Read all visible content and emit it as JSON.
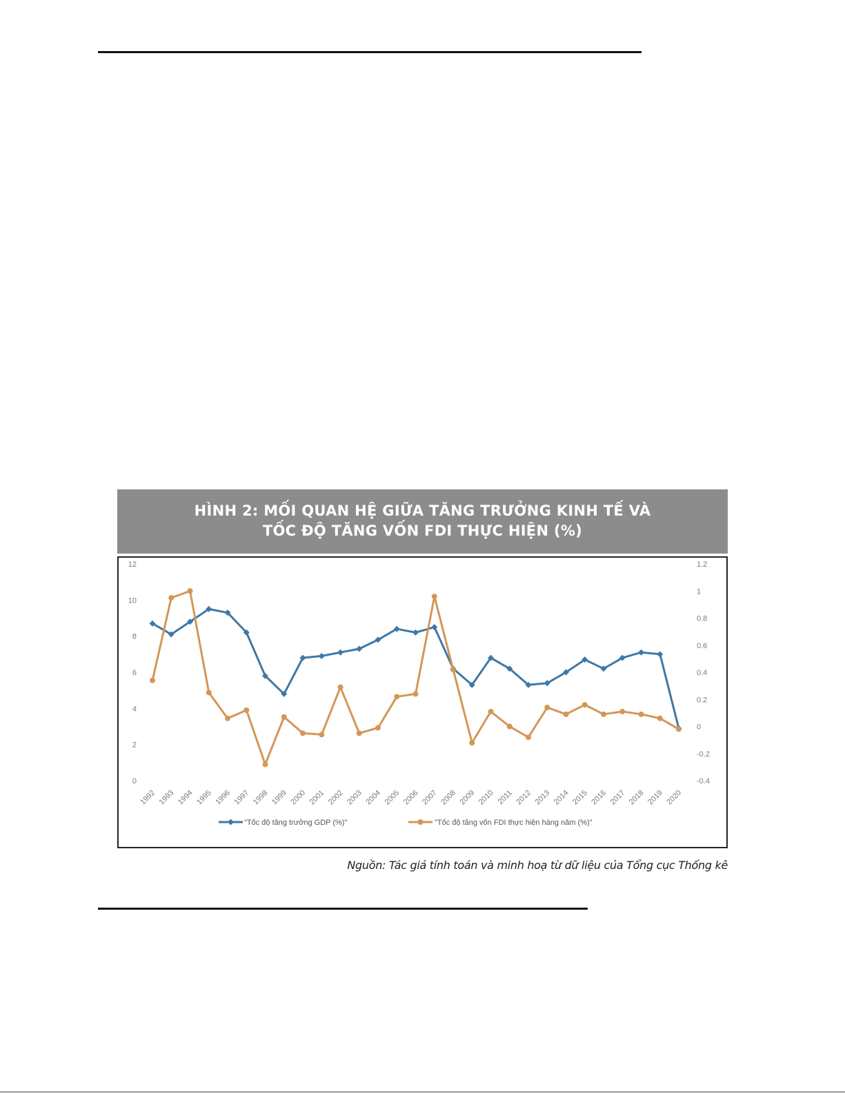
{
  "figure": {
    "title_line1": "HÌNH 2: MỐI QUAN HỆ GIỮA TĂNG TRƯỞNG KINH TẾ VÀ",
    "title_line2": "TỐC ĐỘ TĂNG VỐN FDI THỰC HIỆN (%)",
    "source": "Nguồn: Tác giả tính toán và minh hoạ từ dữ liệu của Tổng cục Thống kê"
  },
  "chart_data": {
    "type": "line",
    "title": "HÌNH 2: MỐI QUAN HỆ GIỮA TĂNG TRƯỞNG KINH TẾ VÀ TỐC ĐỘ TĂNG VỐN FDI THỰC HIỆN (%)",
    "x": [
      "1992",
      "1993",
      "1994",
      "1995",
      "1996",
      "1997",
      "1998",
      "1999",
      "2000",
      "2001",
      "2002",
      "2003",
      "2004",
      "2005",
      "2006",
      "2007",
      "2008",
      "2009",
      "2010",
      "2011",
      "2012",
      "2013",
      "2014",
      "2015",
      "2016",
      "2017",
      "2018",
      "2019",
      "2020"
    ],
    "y_left_ticks": [
      "0",
      "2",
      "4",
      "6",
      "8",
      "10",
      "12"
    ],
    "y_right_ticks": [
      "-0.4",
      "-0.2",
      "0",
      "0.2",
      "0.4",
      "0.6",
      "0.8",
      "1",
      "1.2"
    ],
    "ylim_left": [
      0,
      12
    ],
    "ylim_right": [
      -0.4,
      1.2
    ],
    "grid": false,
    "legend_position": "bottom",
    "series": [
      {
        "name": "\"Tốc độ tăng trưởng GDP (%)\"",
        "axis": "left",
        "color": "#3f78a6",
        "marker": "diamond",
        "values": [
          8.7,
          8.1,
          8.8,
          9.5,
          9.3,
          8.2,
          5.8,
          4.8,
          6.8,
          6.9,
          7.1,
          7.3,
          7.8,
          8.4,
          8.2,
          8.5,
          6.2,
          5.3,
          6.8,
          6.2,
          5.3,
          5.4,
          6.0,
          6.7,
          6.2,
          6.8,
          7.1,
          7.0,
          2.9
        ]
      },
      {
        "name": "\"Tốc độ tăng vốn FDI thực hiện hàng năm (%)\"",
        "axis": "right",
        "color": "#d49657",
        "marker": "circle",
        "values": [
          0.34,
          0.95,
          1.0,
          0.25,
          0.06,
          0.12,
          -0.28,
          0.07,
          -0.05,
          -0.06,
          0.29,
          -0.05,
          -0.01,
          0.22,
          0.24,
          0.96,
          0.42,
          -0.12,
          0.11,
          0.0,
          -0.08,
          0.14,
          0.09,
          0.16,
          0.09,
          0.11,
          0.09,
          0.06,
          -0.02
        ]
      }
    ]
  }
}
